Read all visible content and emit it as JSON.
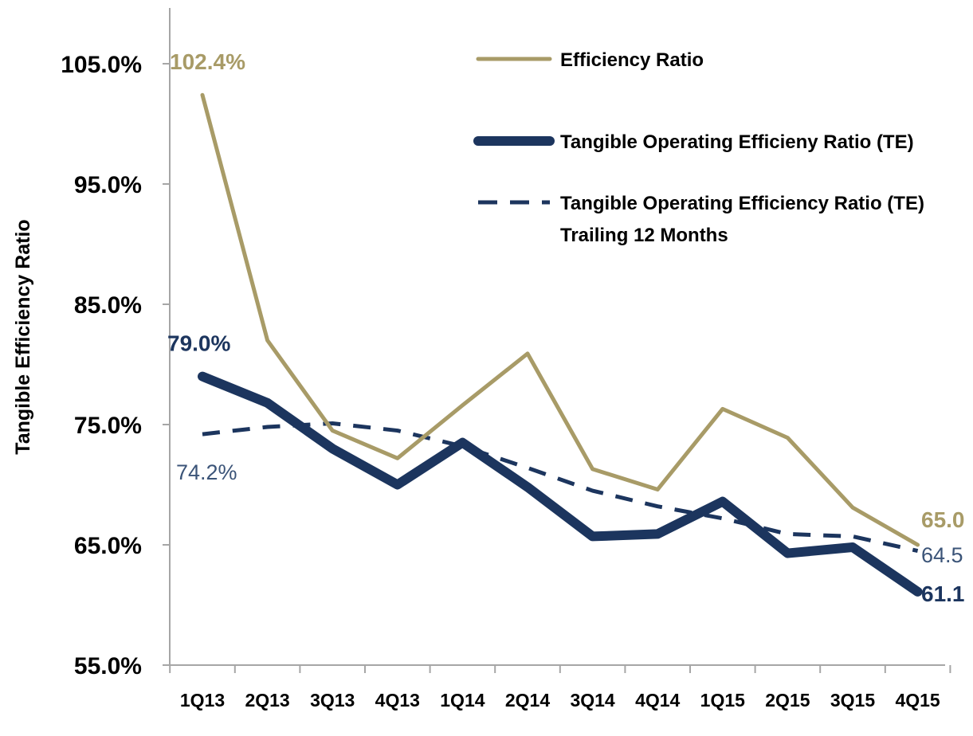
{
  "chart_data": {
    "type": "line",
    "ylabel": "Tangible Efficiency Ratio",
    "ylim": [
      55,
      110
    ],
    "yticks": [
      {
        "value": 105,
        "label": "105.0%"
      },
      {
        "value": 95,
        "label": "95.0%"
      },
      {
        "value": 85,
        "label": "85.0%"
      },
      {
        "value": 75,
        "label": "75.0%"
      },
      {
        "value": 65,
        "label": "65.0%"
      },
      {
        "value": 55,
        "label": "55.0%"
      }
    ],
    "categories": [
      "1Q13",
      "2Q13",
      "3Q13",
      "4Q13",
      "1Q14",
      "2Q14",
      "3Q14",
      "4Q14",
      "1Q15",
      "2Q15",
      "3Q15",
      "4Q15"
    ],
    "legend_position": "top-right",
    "series": [
      {
        "name": "Efficiency Ratio",
        "color": "#A89B67",
        "style": "solid",
        "values": [
          102.4,
          82.0,
          74.5,
          72.2,
          76.6,
          80.9,
          71.3,
          69.6,
          76.3,
          73.9,
          68.1,
          65.0
        ]
      },
      {
        "name": "Tangible Operating Efficieny Ratio (TE)",
        "color": "#1C355E",
        "style": "thick",
        "values": [
          79.0,
          76.8,
          73.0,
          70.0,
          73.5,
          69.8,
          65.7,
          65.9,
          68.6,
          64.3,
          64.8,
          61.1
        ]
      },
      {
        "name": "Tangible Operating Efficiency Ratio (TE) Trailing 12 Months",
        "name_lines": [
          "Tangible Operating Efficiency Ratio (TE)",
          "Trailing 12 Months"
        ],
        "color": "#1C355E",
        "style": "dashed",
        "values": [
          74.2,
          74.8,
          75.1,
          74.5,
          73.2,
          71.4,
          69.5,
          68.2,
          67.2,
          65.9,
          65.7,
          64.5
        ]
      }
    ],
    "data_labels": [
      {
        "series": 0,
        "index": 0,
        "text": "102.4%",
        "bold": true,
        "position": "above"
      },
      {
        "series": 1,
        "index": 0,
        "text": "79.0%",
        "bold": true,
        "position": "above"
      },
      {
        "series": 2,
        "index": 0,
        "text": "74.2%",
        "bold": false,
        "position": "below"
      },
      {
        "series": 0,
        "index": 11,
        "text": "65.0",
        "bold": true,
        "position": "right-above"
      },
      {
        "series": 2,
        "index": 11,
        "text": "64.5",
        "bold": false,
        "position": "right"
      },
      {
        "series": 1,
        "index": 11,
        "text": "61.1",
        "bold": true,
        "position": "right"
      }
    ]
  }
}
